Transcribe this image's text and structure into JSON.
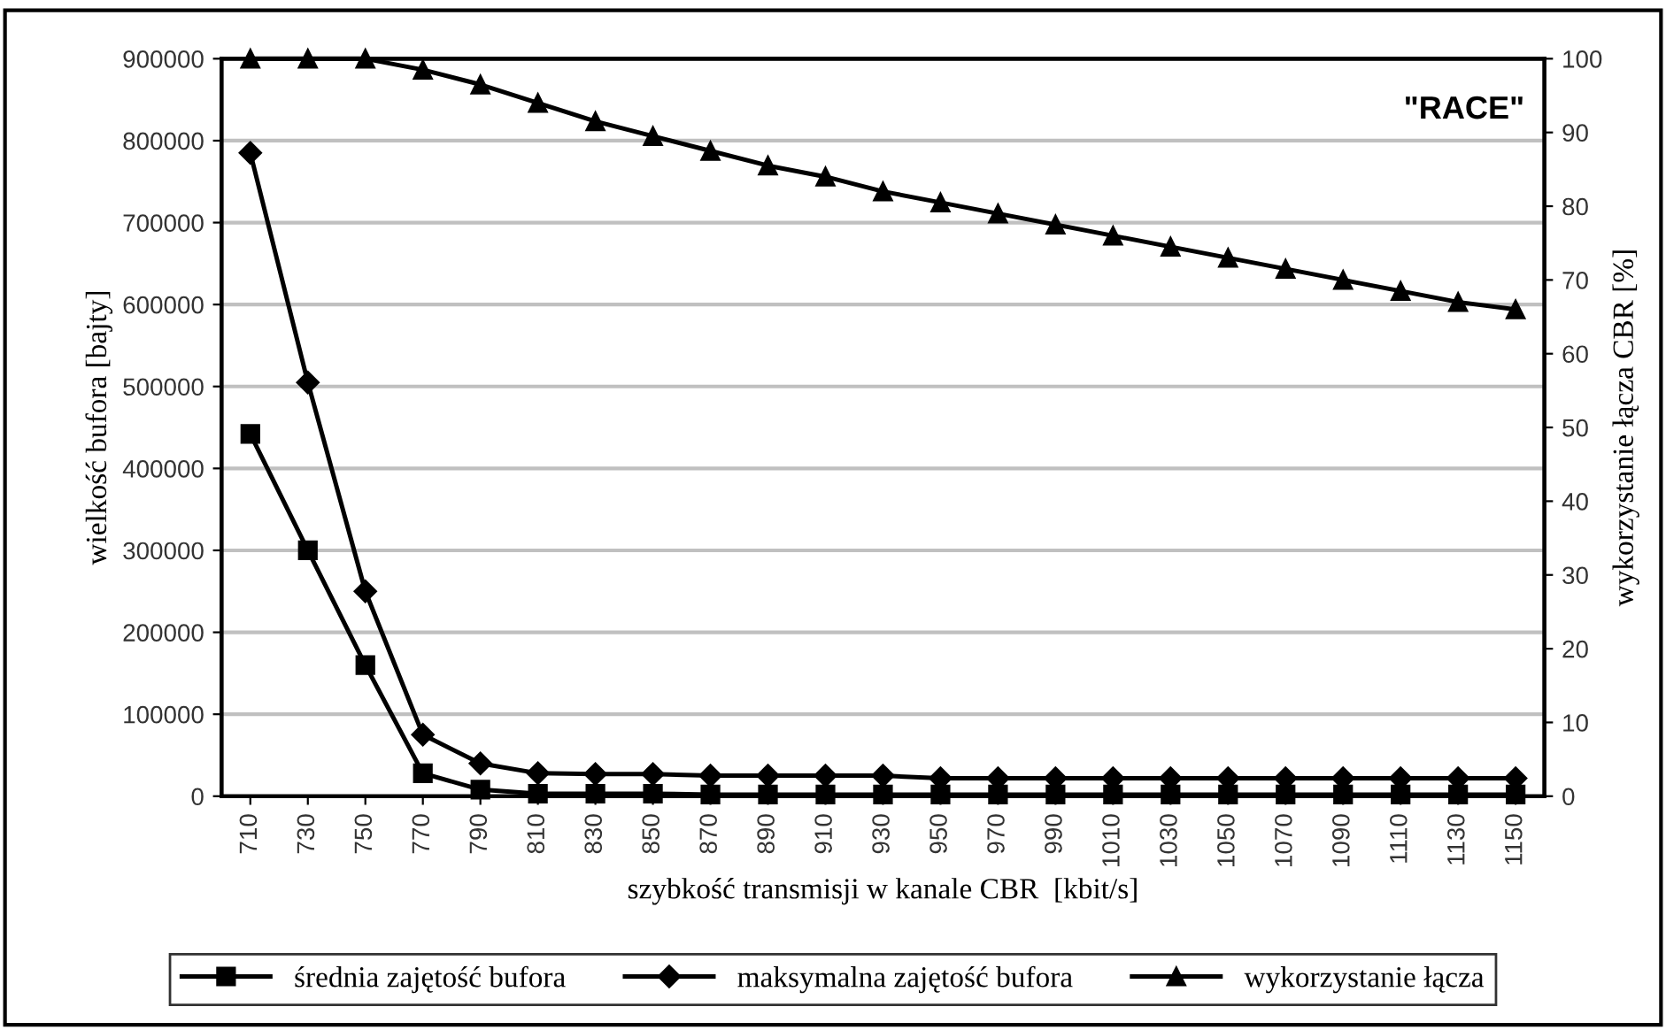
{
  "chart_data": {
    "type": "line",
    "xlabel": "szybkość transmisji w kanale CBR  [kbit/s]",
    "ylabel": "wielkość bufora [bajty]",
    "y2label": "wykorzystanie łącza CBR [%]",
    "categories": [
      "710",
      "730",
      "750",
      "770",
      "790",
      "810",
      "830",
      "850",
      "870",
      "890",
      "910",
      "930",
      "950",
      "970",
      "990",
      "1010",
      "1030",
      "1050",
      "1070",
      "1090",
      "1110",
      "1130",
      "1150"
    ],
    "series": [
      {
        "name": "średnia zajętość bufora",
        "color": "#000000",
        "marker": "square",
        "values": [
          442000,
          300000,
          160000,
          28000,
          8000,
          3000,
          3000,
          3000,
          2000,
          2000,
          2000,
          2000,
          2000,
          2000,
          2000,
          2000,
          2000,
          2000,
          2000,
          2000,
          2000,
          2000,
          2000
        ]
      },
      {
        "name": "maksymalna zajętość bufora",
        "color": "#000000",
        "marker": "diamond",
        "values": [
          785000,
          505000,
          250000,
          75000,
          40000,
          28000,
          27000,
          27000,
          25000,
          25000,
          25000,
          25000,
          22000,
          22000,
          22000,
          22000,
          22000,
          22000,
          22000,
          22000,
          22000,
          22000,
          22000
        ]
      },
      {
        "name": "wykorzystanie łącza",
        "color": "#000000",
        "marker": "triangle",
        "axis": "y2",
        "values": [
          100,
          100,
          100,
          98.5,
          96.5,
          94,
          91.5,
          89.5,
          87.5,
          85.5,
          84,
          82,
          80.5,
          79,
          77.5,
          76,
          74.5,
          73,
          71.5,
          70,
          68.5,
          67,
          66
        ]
      }
    ],
    "ylim": [
      0,
      900000
    ],
    "yticks": [
      0,
      100000,
      200000,
      300000,
      400000,
      500000,
      600000,
      700000,
      800000,
      900000
    ],
    "y2lim": [
      0,
      100
    ],
    "y2ticks": [
      0,
      10,
      20,
      30,
      40,
      50,
      60,
      70,
      80,
      90,
      100
    ],
    "annotations": [
      "\"RACE\""
    ],
    "grid": "y",
    "legend": "bottom",
    "line_style": "solid"
  }
}
